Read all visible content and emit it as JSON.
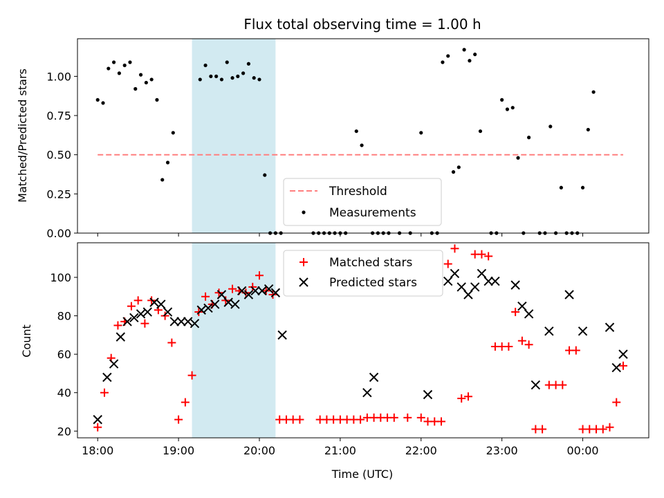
{
  "chart_data": [
    {
      "type": "scatter",
      "title": "Flux total observing time = 1.00 h",
      "xlabel": "",
      "ylabel": "Matched/Predicted stars",
      "xlim": [
        "17:45",
        "00:49"
      ],
      "ylim": [
        0,
        1.24
      ],
      "yticks": [
        "0.00",
        "0.25",
        "0.50",
        "0.75",
        "1.00"
      ],
      "xticks": [
        "18:00",
        "19:00",
        "20:00",
        "21:00",
        "22:00",
        "23:00",
        "00:00"
      ],
      "shaded_span": [
        "19:10",
        "20:12"
      ],
      "legend_position": "lower center",
      "series": [
        {
          "name": "Threshold",
          "style": "dashed-line",
          "color": "#ff7f7f",
          "points": [
            [
              "18:00",
              0.5
            ],
            [
              "00:30",
              0.5
            ]
          ]
        },
        {
          "name": "Measurements",
          "style": "dot",
          "color": "#000000",
          "points": [
            [
              "18:00",
              0.85
            ],
            [
              "18:04",
              0.83
            ],
            [
              "18:08",
              1.05
            ],
            [
              "18:12",
              1.09
            ],
            [
              "18:16",
              1.02
            ],
            [
              "18:20",
              1.07
            ],
            [
              "18:24",
              1.09
            ],
            [
              "18:28",
              0.92
            ],
            [
              "18:32",
              1.01
            ],
            [
              "18:36",
              0.96
            ],
            [
              "18:40",
              0.98
            ],
            [
              "18:44",
              0.85
            ],
            [
              "18:48",
              0.34
            ],
            [
              "18:52",
              0.45
            ],
            [
              "18:56",
              0.64
            ],
            [
              "19:16",
              0.98
            ],
            [
              "19:20",
              1.07
            ],
            [
              "19:24",
              1.0
            ],
            [
              "19:28",
              1.0
            ],
            [
              "19:32",
              0.98
            ],
            [
              "19:36",
              1.09
            ],
            [
              "19:40",
              0.99
            ],
            [
              "19:44",
              1.0
            ],
            [
              "19:48",
              1.02
            ],
            [
              "19:52",
              1.08
            ],
            [
              "19:56",
              0.99
            ],
            [
              "20:00",
              0.98
            ],
            [
              "20:04",
              0.37
            ],
            [
              "20:08",
              0.0
            ],
            [
              "20:12",
              0.0
            ],
            [
              "20:16",
              0.0
            ],
            [
              "20:40",
              0.0
            ],
            [
              "20:44",
              0.0
            ],
            [
              "20:48",
              0.0
            ],
            [
              "20:52",
              0.0
            ],
            [
              "20:56",
              0.0
            ],
            [
              "21:00",
              0.0
            ],
            [
              "21:04",
              0.0
            ],
            [
              "21:12",
              0.65
            ],
            [
              "21:16",
              0.56
            ],
            [
              "21:24",
              0.0
            ],
            [
              "21:28",
              0.0
            ],
            [
              "21:32",
              0.0
            ],
            [
              "21:36",
              0.0
            ],
            [
              "21:44",
              0.0
            ],
            [
              "21:52",
              0.0
            ],
            [
              "22:00",
              0.64
            ],
            [
              "22:08",
              0.0
            ],
            [
              "22:12",
              0.0
            ],
            [
              "22:16",
              1.09
            ],
            [
              "22:20",
              1.13
            ],
            [
              "22:24",
              0.39
            ],
            [
              "22:28",
              0.42
            ],
            [
              "22:32",
              1.17
            ],
            [
              "22:36",
              1.1
            ],
            [
              "22:40",
              1.14
            ],
            [
              "22:44",
              0.65
            ],
            [
              "22:52",
              0.0
            ],
            [
              "22:56",
              0.0
            ],
            [
              "23:00",
              0.85
            ],
            [
              "23:04",
              0.79
            ],
            [
              "23:08",
              0.8
            ],
            [
              "23:12",
              0.48
            ],
            [
              "23:16",
              0.0
            ],
            [
              "23:20",
              0.61
            ],
            [
              "23:28",
              0.0
            ],
            [
              "23:32",
              0.0
            ],
            [
              "23:36",
              0.68
            ],
            [
              "23:40",
              0.0
            ],
            [
              "23:44",
              0.29
            ],
            [
              "23:48",
              0.0
            ],
            [
              "23:52",
              0.0
            ],
            [
              "23:56",
              0.0
            ],
            [
              "00:00",
              0.29
            ],
            [
              "00:04",
              0.66
            ],
            [
              "00:08",
              0.9
            ]
          ]
        }
      ]
    },
    {
      "type": "scatter",
      "title": "",
      "xlabel": "Time (UTC)",
      "ylabel": "Count",
      "xlim": [
        "17:45",
        "00:49"
      ],
      "ylim": [
        16.5,
        118
      ],
      "yticks": [
        "20",
        "40",
        "60",
        "80",
        "100"
      ],
      "xticks": [
        "18:00",
        "19:00",
        "20:00",
        "21:00",
        "22:00",
        "23:00",
        "00:00"
      ],
      "shaded_span": [
        "19:10",
        "20:12"
      ],
      "legend_position": "upper center",
      "series": [
        {
          "name": "Matched stars",
          "marker": "+",
          "color": "#ff0000",
          "points": [
            [
              "18:00",
              22
            ],
            [
              "18:05",
              40
            ],
            [
              "18:10",
              58
            ],
            [
              "18:15",
              75
            ],
            [
              "18:20",
              77
            ],
            [
              "18:25",
              85
            ],
            [
              "18:30",
              88
            ],
            [
              "18:35",
              76
            ],
            [
              "18:40",
              88
            ],
            [
              "18:45",
              83
            ],
            [
              "18:50",
              80
            ],
            [
              "18:55",
              66
            ],
            [
              "19:00",
              26
            ],
            [
              "19:05",
              35
            ],
            [
              "19:10",
              49
            ],
            [
              "19:15",
              82
            ],
            [
              "19:20",
              90
            ],
            [
              "19:25",
              86
            ],
            [
              "19:30",
              92
            ],
            [
              "19:35",
              88
            ],
            [
              "19:40",
              94
            ],
            [
              "19:45",
              93
            ],
            [
              "19:50",
              92
            ],
            [
              "19:55",
              95
            ],
            [
              "20:00",
              101
            ],
            [
              "20:05",
              93
            ],
            [
              "20:10",
              91
            ],
            [
              "20:15",
              26
            ],
            [
              "20:20",
              26
            ],
            [
              "20:25",
              26
            ],
            [
              "20:30",
              26
            ],
            [
              "20:45",
              26
            ],
            [
              "20:50",
              26
            ],
            [
              "20:55",
              26
            ],
            [
              "21:00",
              26
            ],
            [
              "21:05",
              26
            ],
            [
              "21:10",
              26
            ],
            [
              "21:15",
              26
            ],
            [
              "21:20",
              27
            ],
            [
              "21:25",
              27
            ],
            [
              "21:30",
              27
            ],
            [
              "21:35",
              27
            ],
            [
              "21:40",
              27
            ],
            [
              "21:50",
              27
            ],
            [
              "22:00",
              27
            ],
            [
              "22:05",
              25
            ],
            [
              "22:10",
              25
            ],
            [
              "22:15",
              25
            ],
            [
              "22:20",
              107
            ],
            [
              "22:25",
              115
            ],
            [
              "22:30",
              37
            ],
            [
              "22:35",
              38
            ],
            [
              "22:40",
              112
            ],
            [
              "22:45",
              112
            ],
            [
              "22:50",
              111
            ],
            [
              "22:55",
              64
            ],
            [
              "23:00",
              64
            ],
            [
              "23:05",
              64
            ],
            [
              "23:10",
              82
            ],
            [
              "23:15",
              67
            ],
            [
              "23:20",
              65
            ],
            [
              "23:25",
              21
            ],
            [
              "23:30",
              21
            ],
            [
              "23:35",
              44
            ],
            [
              "23:40",
              44
            ],
            [
              "23:45",
              44
            ],
            [
              "23:50",
              62
            ],
            [
              "23:55",
              62
            ],
            [
              "00:00",
              21
            ],
            [
              "00:05",
              21
            ],
            [
              "00:10",
              21
            ],
            [
              "00:15",
              21
            ],
            [
              "00:20",
              22
            ],
            [
              "00:25",
              35
            ],
            [
              "00:30",
              54
            ]
          ]
        },
        {
          "name": "Predicted stars",
          "marker": "x",
          "color": "#000000",
          "points": [
            [
              "18:00",
              26
            ],
            [
              "18:07",
              48
            ],
            [
              "18:12",
              55
            ],
            [
              "18:17",
              69
            ],
            [
              "18:22",
              77
            ],
            [
              "18:27",
              79
            ],
            [
              "18:32",
              81
            ],
            [
              "18:37",
              82
            ],
            [
              "18:42",
              87
            ],
            [
              "18:47",
              86
            ],
            [
              "18:52",
              82
            ],
            [
              "18:57",
              77
            ],
            [
              "19:02",
              77
            ],
            [
              "19:07",
              77
            ],
            [
              "19:12",
              76
            ],
            [
              "19:17",
              83
            ],
            [
              "19:22",
              84
            ],
            [
              "19:27",
              86
            ],
            [
              "19:32",
              91
            ],
            [
              "19:37",
              87
            ],
            [
              "19:42",
              86
            ],
            [
              "19:47",
              93
            ],
            [
              "19:52",
              91
            ],
            [
              "19:57",
              93
            ],
            [
              "20:02",
              93
            ],
            [
              "20:07",
              94
            ],
            [
              "20:12",
              92
            ],
            [
              "20:17",
              70
            ],
            [
              "21:20",
              40
            ],
            [
              "21:25",
              48
            ],
            [
              "22:05",
              39
            ],
            [
              "22:20",
              98
            ],
            [
              "22:25",
              102
            ],
            [
              "22:30",
              95
            ],
            [
              "22:35",
              91
            ],
            [
              "22:40",
              95
            ],
            [
              "22:45",
              102
            ],
            [
              "22:50",
              98
            ],
            [
              "22:55",
              98
            ],
            [
              "23:10",
              96
            ],
            [
              "23:15",
              85
            ],
            [
              "23:20",
              81
            ],
            [
              "23:25",
              44
            ],
            [
              "23:35",
              72
            ],
            [
              "23:50",
              91
            ],
            [
              "24:00",
              72
            ],
            [
              "00:20",
              74
            ],
            [
              "00:25",
              53
            ],
            [
              "00:30",
              60
            ]
          ]
        }
      ]
    }
  ]
}
